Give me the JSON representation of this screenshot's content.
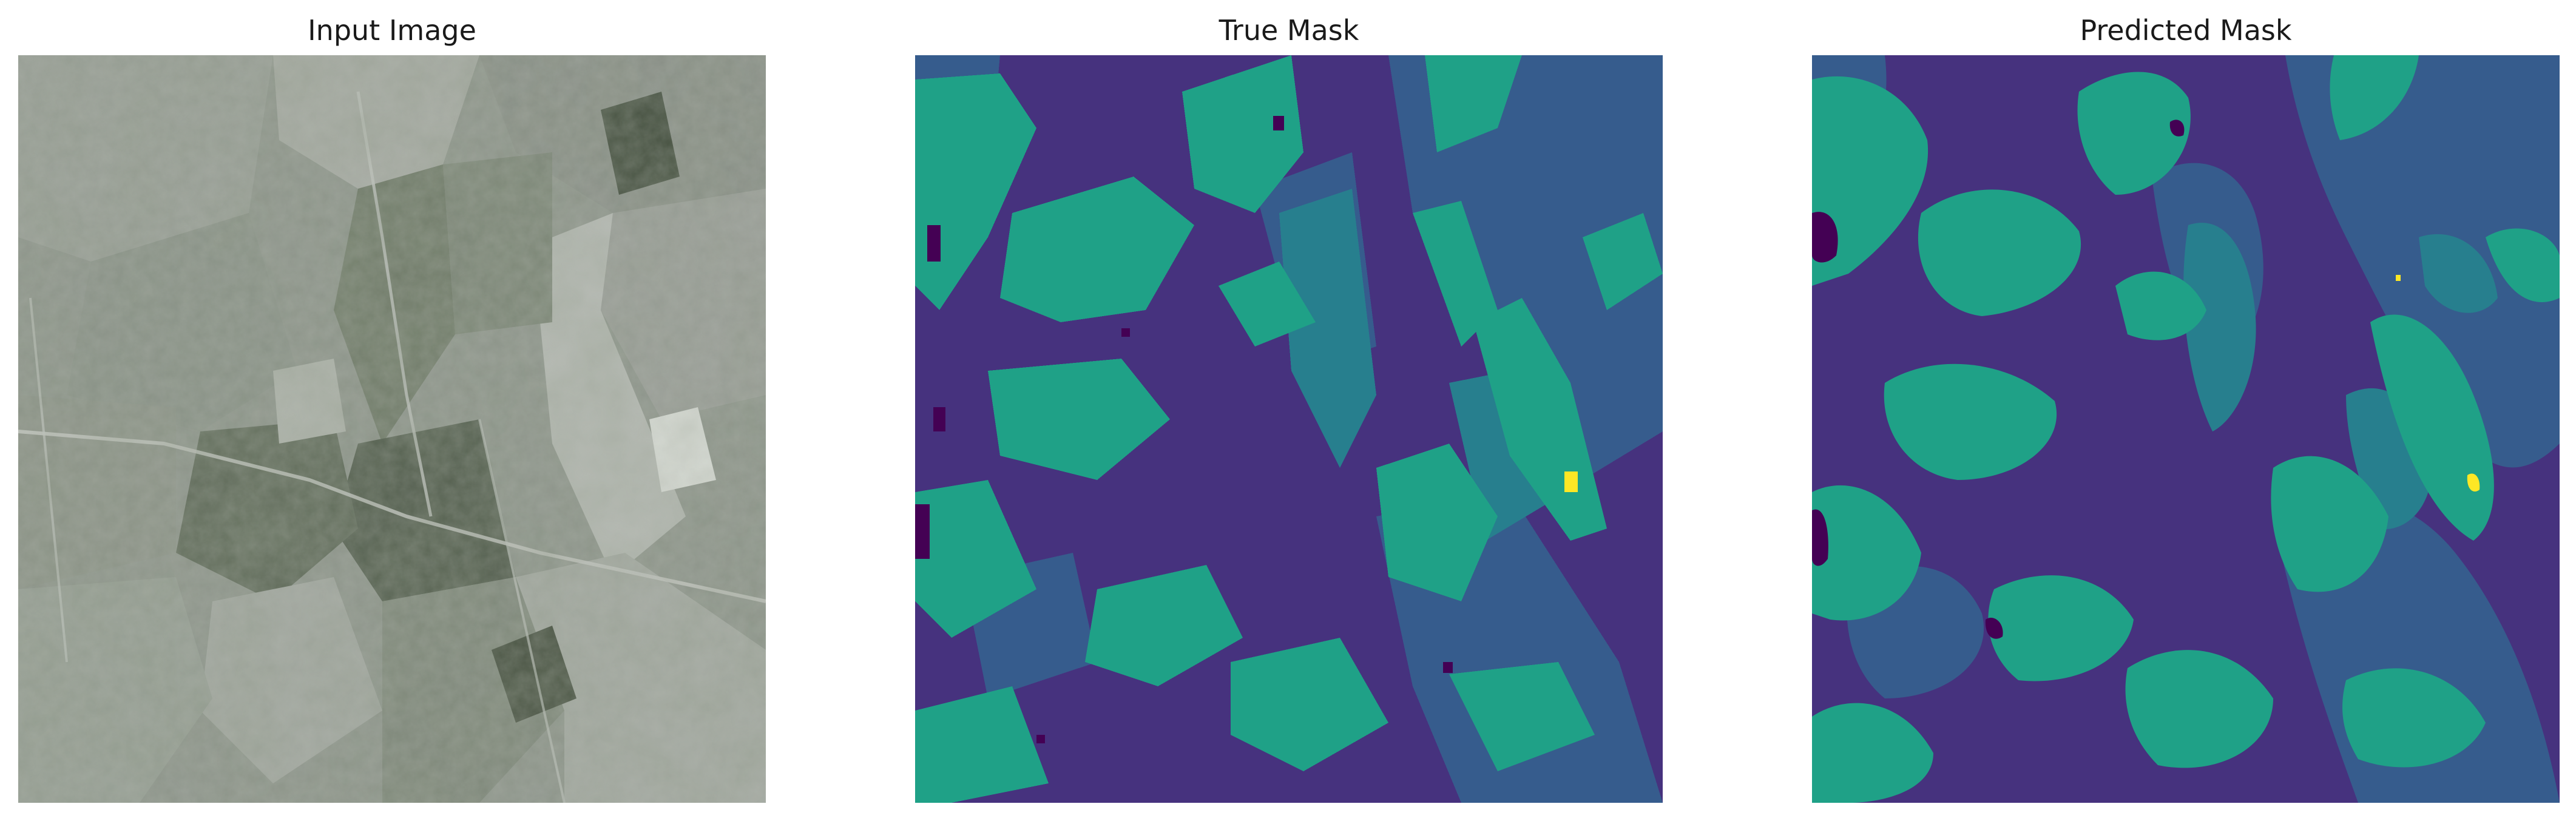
{
  "figure": {
    "panels": [
      {
        "id": "input",
        "title": "Input Image"
      },
      {
        "id": "true",
        "title": "True Mask"
      },
      {
        "id": "pred",
        "title": "Predicted Mask"
      }
    ]
  },
  "palette": {
    "class0": "#440154",
    "class1": "#46327e",
    "class2": "#365c8d",
    "class3": "#277f8e",
    "class4": "#1fa187",
    "class5": "#fde725",
    "satellite_base": "#8c938a",
    "satellite_dark": "#4f5a49",
    "satellite_light": "#c5c9c4"
  }
}
